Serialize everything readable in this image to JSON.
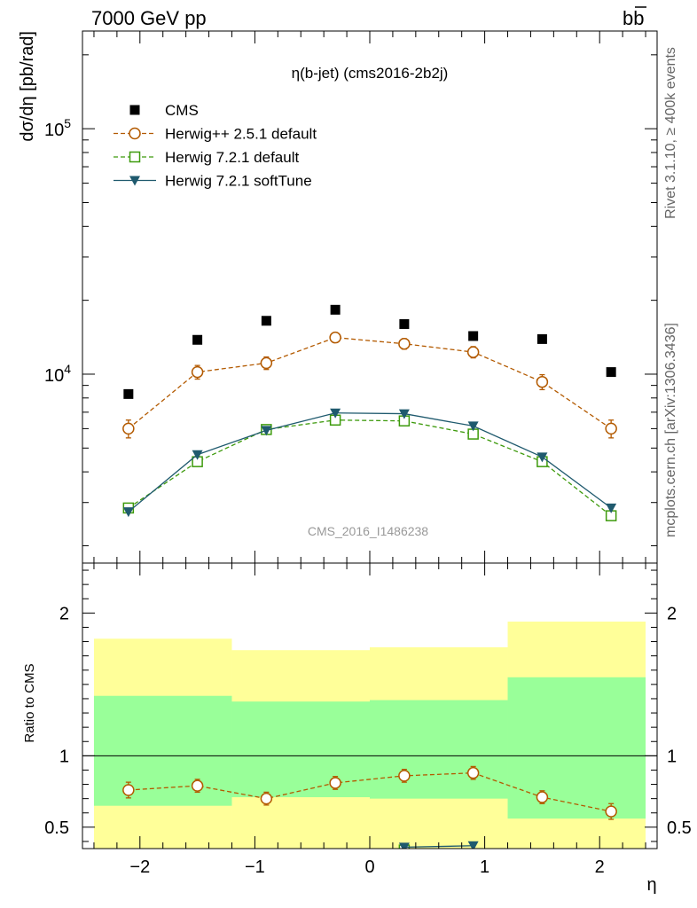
{
  "header": {
    "left": "7000 GeV pp",
    "right": "b",
    "right_bar": "b"
  },
  "side_text": {
    "top": "Rivet 3.1.10, ≥ 400k events",
    "bottom": "mcplots.cern.ch [arXiv:1306.3436]"
  },
  "watermark": "CMS_2016_I1486238",
  "colors": {
    "cms": "#000000",
    "herwigpp": "#b35a00",
    "herwig72": "#3d9a0c",
    "softtune": "#1f5a6e",
    "band_outer": "#ffff99",
    "band_inner": "#99ff99"
  },
  "chart_data": [
    {
      "type": "scatter",
      "title": "η(b-jet) (cms2016-2b2j)",
      "ylabel": "dσ/dη [pb/rad]",
      "xlabel": "",
      "xlim": [
        -2.5,
        2.5
      ],
      "ylim": [
        1700,
        250000
      ],
      "yscale": "log",
      "x_ticks": [
        -2,
        -1,
        0,
        1,
        2
      ],
      "x_tick_labels": [
        "−2",
        "−1",
        "0",
        "1",
        "2"
      ],
      "y_tick_labels": [
        {
          "value": 10000,
          "base": "10",
          "exp": "4"
        },
        {
          "value": 100000,
          "base": "10",
          "exp": "5"
        }
      ],
      "legend": [
        "CMS",
        "Herwig++ 2.5.1 default",
        "Herwig 7.2.1 default",
        "Herwig 7.2.1 softTune"
      ],
      "legend_position": "top-left",
      "x": [
        -2.1,
        -1.5,
        -0.9,
        -0.3,
        0.3,
        0.9,
        1.5,
        2.1
      ],
      "series": [
        {
          "name": "CMS",
          "values": [
            8300,
            13800,
            16500,
            18300,
            16000,
            14300,
            13900,
            10200
          ]
        },
        {
          "name": "Herwig++ 2.5.1 default",
          "values": [
            6000,
            10200,
            11100,
            14100,
            13300,
            12300,
            9300,
            6000
          ],
          "errors": [
            500,
            650,
            650,
            650,
            650,
            650,
            650,
            500
          ]
        },
        {
          "name": "Herwig 7.2.1 default",
          "values": [
            2850,
            4400,
            5950,
            6500,
            6450,
            5700,
            4400,
            2650
          ]
        },
        {
          "name": "Herwig 7.2.1 softTune",
          "values": [
            2750,
            4700,
            5900,
            6950,
            6900,
            6150,
            4600,
            2850
          ]
        }
      ]
    },
    {
      "type": "scatter",
      "title": "",
      "ylabel": "Ratio to CMS",
      "xlabel": "η",
      "xlim": [
        -2.5,
        2.5
      ],
      "ylim": [
        0.35,
        2.35
      ],
      "y_ticks": [
        0.5,
        1,
        2
      ],
      "y_tick_labels": [
        "0.5",
        "1",
        "2"
      ],
      "x_tick_labels": [
        "−2",
        "−1",
        "0",
        "1",
        "2"
      ],
      "bands": [
        {
          "x0": -2.4,
          "x1": -1.2,
          "outer": [
            0.3,
            1.82
          ],
          "inner": [
            0.65,
            1.42
          ]
        },
        {
          "x0": -1.2,
          "x1": 0.0,
          "outer": [
            0.3,
            1.74
          ],
          "inner": [
            0.71,
            1.38
          ]
        },
        {
          "x0": 0.0,
          "x1": 1.2,
          "outer": [
            0.3,
            1.76
          ],
          "inner": [
            0.7,
            1.39
          ]
        },
        {
          "x0": 1.2,
          "x1": 2.4,
          "outer": [
            0.3,
            1.94
          ],
          "inner": [
            0.56,
            1.55
          ]
        }
      ],
      "x": [
        -2.1,
        -1.5,
        -0.9,
        -0.3,
        0.3,
        0.9,
        1.5,
        2.1
      ],
      "series": [
        {
          "name": "Herwig++ 2.5.1 default",
          "values": [
            0.76,
            0.79,
            0.7,
            0.81,
            0.86,
            0.88,
            0.71,
            0.61
          ],
          "errors": [
            0.055,
            0.045,
            0.045,
            0.045,
            0.045,
            0.045,
            0.045,
            0.055
          ]
        },
        {
          "name": "Herwig 7.2.1 default",
          "values": [
            null,
            null,
            null,
            null,
            0.34,
            null,
            null,
            null
          ]
        },
        {
          "name": "Herwig 7.2.1 softTune",
          "values": [
            null,
            null,
            null,
            null,
            0.36,
            0.37,
            null,
            null
          ]
        }
      ]
    }
  ]
}
